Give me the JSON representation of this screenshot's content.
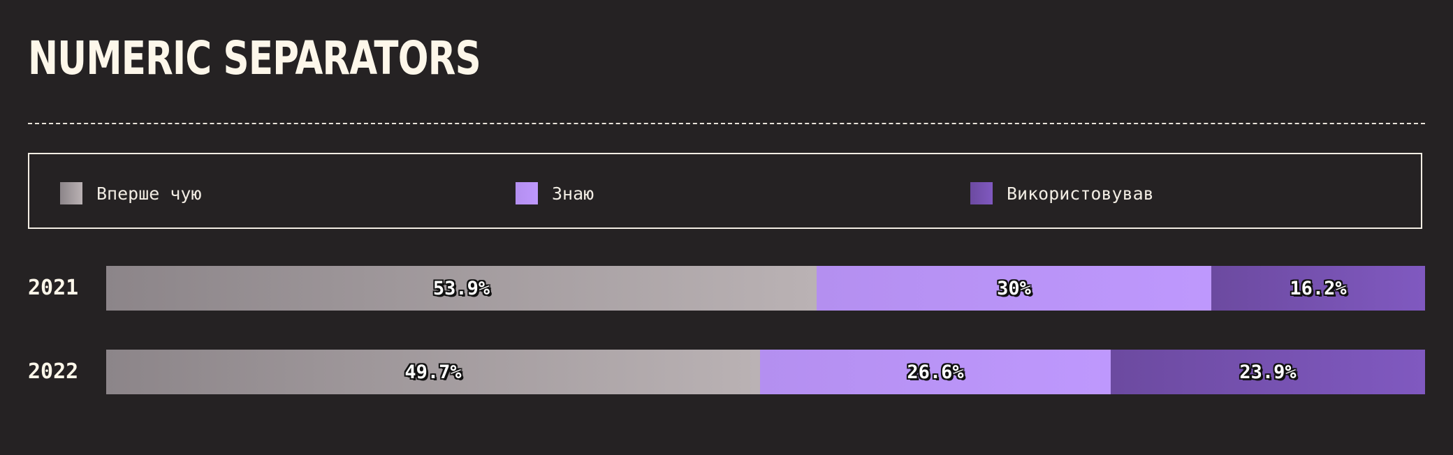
{
  "title": "NUMERIC SEPARATORS",
  "chart_data": {
    "type": "bar",
    "orientation": "horizontal",
    "stacked": true,
    "normalized": true,
    "title": "NUMERIC SEPARATORS",
    "categories": [
      "2021",
      "2022"
    ],
    "series": [
      {
        "name": "Вперше чую",
        "values": [
          53.9,
          49.7
        ],
        "labels": [
          "53.9%",
          "49.7%"
        ],
        "color": "#8c8589",
        "color_end": "#bab2b4"
      },
      {
        "name": "Знаю",
        "values": [
          30,
          26.6
        ],
        "labels": [
          "30%",
          "26.6%"
        ],
        "color": "#b48ff0",
        "color_end": "#be98fd"
      },
      {
        "name": "Використовував",
        "values": [
          16.2,
          23.9
        ],
        "labels": [
          "16.2%",
          "23.9%"
        ],
        "color": "#6c4aa0",
        "color_end": "#8059c0"
      }
    ],
    "xlim": [
      0,
      100
    ],
    "legend_position": "top",
    "grid": false
  }
}
